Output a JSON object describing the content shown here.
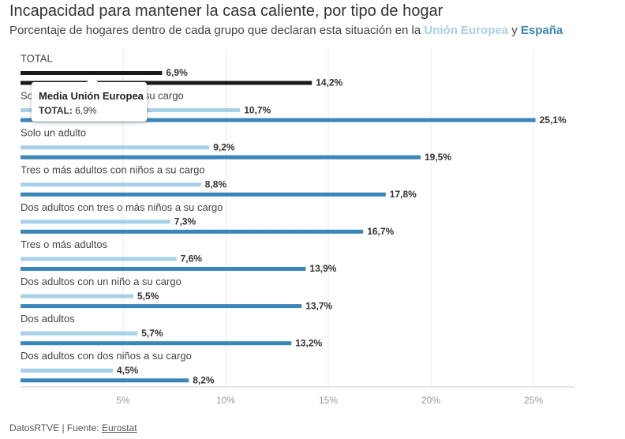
{
  "header": {
    "title": "Incapacidad para mantener la casa caliente, por tipo de hogar",
    "subtitle_prefix": "Porcentaje de hogares dentro de cada grupo que declaran esta situación en la ",
    "subtitle_eu": "Unión Europea",
    "subtitle_mid": " y ",
    "subtitle_es": "España"
  },
  "colors": {
    "eu": "#a8d0e6",
    "es": "#3a86b8",
    "total": "#1a1a1a",
    "grid": "#e8e8e8",
    "axis": "#cccccc"
  },
  "tooltip": {
    "title": "Media Unión Europea",
    "label": "TOTAL:",
    "value": "6,9%"
  },
  "footer": {
    "credit": "DatosRTVE | Fuente: ",
    "source": "Eurostat"
  },
  "chart_data": {
    "type": "bar",
    "orientation": "horizontal",
    "categories": [
      "TOTAL",
      "Solo un adulto con niños a su cargo",
      "Solo un adulto",
      "Tres o más adultos con niños a su cargo",
      "Dos adultos con tres o más niños a su cargo",
      "Tres o más adultos",
      "Dos adultos con un niño a su cargo",
      "Dos adultos",
      "Dos adultos con dos niños a su cargo"
    ],
    "series": [
      {
        "name": "Unión Europea",
        "values": [
          6.9,
          10.7,
          9.2,
          8.8,
          7.3,
          7.6,
          5.5,
          5.7,
          4.5
        ]
      },
      {
        "name": "España",
        "values": [
          14.2,
          25.1,
          19.5,
          17.8,
          16.7,
          13.9,
          13.7,
          13.2,
          8.2
        ]
      }
    ],
    "value_labels": [
      [
        "6,9%",
        "10,7%",
        "9,2%",
        "8,8%",
        "7,3%",
        "7,6%",
        "5,5%",
        "5,7%",
        "4,5%"
      ],
      [
        "14,2%",
        "25,1%",
        "19,5%",
        "17,8%",
        "16,7%",
        "13,9%",
        "13,7%",
        "13,2%",
        "8,2%"
      ]
    ],
    "xlim": [
      0,
      27
    ],
    "xticks": [
      5,
      10,
      15,
      20,
      25
    ],
    "xtick_labels": [
      "5%",
      "10%",
      "15%",
      "20%",
      "25%"
    ],
    "highlight_category": "TOTAL",
    "grid": true,
    "legend": "subtitle"
  }
}
